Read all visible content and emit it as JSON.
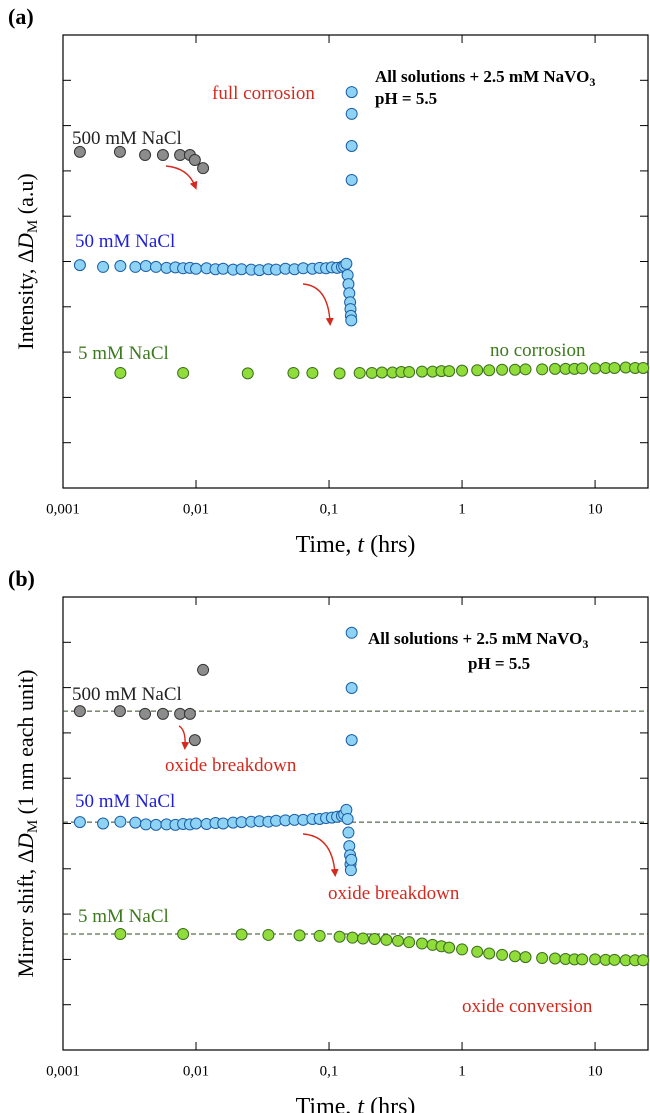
{
  "chart_data": [
    {
      "type": "scatter",
      "panel": "(a)",
      "xlabel": [
        "Time, ",
        "t",
        " (hrs)"
      ],
      "ylabel": [
        "Intensity, Δ",
        "D",
        "M",
        " (a.u)"
      ],
      "xscale": "log",
      "xlim": [
        0.001,
        25
      ],
      "xticks": [
        {
          "value": 0.001,
          "label": "0,001"
        },
        {
          "value": 0.01,
          "label": "0,01"
        },
        {
          "value": 0.1,
          "label": "0,1"
        },
        1,
        10
      ],
      "ylim": [
        0,
        10
      ],
      "yticks": [
        1,
        2,
        3,
        4,
        5,
        6,
        7,
        8,
        9
      ],
      "annotations": [
        {
          "text": "All solutions + 2.5 mM NaVO",
          "sub": "3",
          "color": "#000000",
          "bold": true
        },
        {
          "text": "pH = 5.5",
          "color": "#000000",
          "bold": true
        },
        {
          "text": "full corrosion",
          "color": "#d42a1e"
        },
        {
          "text": "500 mM NaCl",
          "color": "#222222"
        },
        {
          "text": "50 mM NaCl",
          "color": "#1f1fd6"
        },
        {
          "text": "5 mM NaCl",
          "color": "#3d7a1e"
        },
        {
          "text": "no corrosion",
          "color": "#3d7a1e"
        }
      ],
      "series": [
        {
          "name": "500 mM NaCl",
          "color": "#8c8c8c",
          "edge": "#333333",
          "x": [
            0.00134,
            0.00268,
            0.00414,
            0.00564,
            0.00759,
            0.009,
            0.0098,
            0.0113
          ],
          "values": [
            7.42,
            7.42,
            7.35,
            7.35,
            7.35,
            7.35,
            7.24,
            7.06
          ]
        },
        {
          "name": "50 mM NaCl",
          "color": "#8fd3f4",
          "edge": "#1a5ea8",
          "x": [
            0.00134,
            0.002,
            0.0027,
            0.0035,
            0.0042,
            0.005,
            0.006,
            0.007,
            0.008,
            0.009,
            0.01,
            0.012,
            0.014,
            0.016,
            0.019,
            0.022,
            0.026,
            0.03,
            0.035,
            0.04,
            0.047,
            0.055,
            0.064,
            0.075,
            0.085,
            0.095,
            0.105,
            0.115,
            0.125,
            0.13,
            0.135,
            0.138,
            0.14,
            0.142,
            0.144,
            0.145,
            0.146,
            0.147,
            0.148,
            0.148,
            0.148,
            0.148
          ],
          "values": [
            4.92,
            4.88,
            4.9,
            4.88,
            4.9,
            4.88,
            4.86,
            4.87,
            4.85,
            4.86,
            4.84,
            4.85,
            4.83,
            4.84,
            4.82,
            4.83,
            4.82,
            4.81,
            4.83,
            4.82,
            4.84,
            4.83,
            4.85,
            4.84,
            4.86,
            4.85,
            4.87,
            4.86,
            4.88,
            4.9,
            4.95,
            4.7,
            4.5,
            4.3,
            4.1,
            3.95,
            3.8,
            3.7,
            6.8,
            7.55,
            8.26,
            8.74
          ]
        },
        {
          "name": "5 mM NaCl",
          "color": "#8fdc3a",
          "edge": "#3c6e1e",
          "x": [
            0.0027,
            0.008,
            0.0245,
            0.054,
            0.075,
            0.12,
            0.17,
            0.21,
            0.25,
            0.3,
            0.35,
            0.4,
            0.5,
            0.6,
            0.7,
            0.8,
            1,
            1.3,
            1.6,
            2,
            2.5,
            3,
            4,
            5,
            6,
            7,
            8,
            10,
            12,
            14,
            17,
            20,
            23
          ],
          "values": [
            2.54,
            2.54,
            2.53,
            2.54,
            2.54,
            2.53,
            2.54,
            2.54,
            2.55,
            2.55,
            2.56,
            2.56,
            2.57,
            2.57,
            2.58,
            2.58,
            2.59,
            2.6,
            2.6,
            2.61,
            2.61,
            2.62,
            2.62,
            2.63,
            2.63,
            2.63,
            2.64,
            2.64,
            2.65,
            2.65,
            2.66,
            2.65,
            2.65
          ]
        }
      ]
    },
    {
      "type": "scatter",
      "panel": "(b)",
      "xlabel": [
        "Time, ",
        "t",
        " (hrs)"
      ],
      "ylabel": [
        "Mirror shift, Δ",
        "D",
        "M",
        " (1 nm each unit)"
      ],
      "xscale": "log",
      "xlim": [
        0.001,
        25
      ],
      "xticks": [
        {
          "value": 0.001,
          "label": "0,001"
        },
        {
          "value": 0.01,
          "label": "0,01"
        },
        {
          "value": 0.1,
          "label": "0,1"
        },
        1,
        10
      ],
      "ylim": [
        0,
        10
      ],
      "yticks": [
        1,
        2,
        3,
        4,
        5,
        6,
        7,
        8,
        9
      ],
      "hlines": [
        7.48,
        5.03,
        2.56
      ],
      "annotations": [
        {
          "text": "All solutions + 2.5 mM NaVO",
          "sub": "3",
          "color": "#000000",
          "bold": true
        },
        {
          "text": "pH = 5.5",
          "color": "#000000",
          "bold": true
        },
        {
          "text": "500 mM NaCl",
          "color": "#222222"
        },
        {
          "text": "oxide breakdown",
          "color": "#d42a1e"
        },
        {
          "text": "50 mM NaCl",
          "color": "#1f1fd6"
        },
        {
          "text": "oxide breakdown",
          "color": "#d42a1e"
        },
        {
          "text": "5 mM NaCl",
          "color": "#3d7a1e"
        },
        {
          "text": "oxide conversion",
          "color": "#d42a1e"
        }
      ],
      "series": [
        {
          "name": "500 mM NaCl",
          "color": "#8c8c8c",
          "edge": "#333333",
          "x": [
            0.00134,
            0.00268,
            0.00414,
            0.00564,
            0.00759,
            0.009,
            0.0098,
            0.0113
          ],
          "values": [
            7.48,
            7.48,
            7.42,
            7.42,
            7.42,
            7.42,
            6.84,
            8.39
          ]
        },
        {
          "name": "50 mM NaCl",
          "color": "#8fd3f4",
          "edge": "#1a5ea8",
          "x": [
            0.00134,
            0.002,
            0.0027,
            0.0035,
            0.0042,
            0.005,
            0.006,
            0.007,
            0.008,
            0.009,
            0.01,
            0.012,
            0.014,
            0.016,
            0.019,
            0.022,
            0.026,
            0.03,
            0.035,
            0.04,
            0.047,
            0.055,
            0.064,
            0.075,
            0.085,
            0.095,
            0.105,
            0.115,
            0.125,
            0.13,
            0.135,
            0.138,
            0.14,
            0.142,
            0.144,
            0.145,
            0.146,
            0.147,
            0.148,
            0.148,
            0.148
          ],
          "values": [
            5.03,
            5.0,
            5.04,
            5.02,
            4.98,
            4.97,
            4.98,
            4.97,
            4.99,
            4.98,
            5.0,
            4.99,
            5.01,
            5.0,
            5.02,
            5.03,
            5.04,
            5.05,
            5.04,
            5.06,
            5.07,
            5.08,
            5.08,
            5.1,
            5.1,
            5.12,
            5.13,
            5.15,
            5.17,
            5.2,
            5.3,
            5.1,
            4.8,
            4.5,
            4.3,
            4.1,
            3.97,
            4.2,
            6.84,
            7.99,
            9.21
          ]
        },
        {
          "name": "5 mM NaCl",
          "color": "#8fdc3a",
          "edge": "#3c6e1e",
          "x": [
            0.0027,
            0.008,
            0.022,
            0.035,
            0.06,
            0.085,
            0.12,
            0.15,
            0.18,
            0.22,
            0.27,
            0.33,
            0.4,
            0.5,
            0.6,
            0.7,
            0.8,
            1,
            1.3,
            1.6,
            2,
            2.5,
            3,
            4,
            5,
            6,
            7,
            8,
            10,
            12,
            14,
            17,
            20,
            23
          ],
          "values": [
            2.56,
            2.56,
            2.55,
            2.54,
            2.53,
            2.52,
            2.5,
            2.48,
            2.46,
            2.45,
            2.43,
            2.41,
            2.38,
            2.35,
            2.32,
            2.29,
            2.26,
            2.22,
            2.17,
            2.13,
            2.1,
            2.07,
            2.05,
            2.03,
            2.02,
            2.01,
            2.0,
            2.0,
            2.0,
            1.99,
            1.99,
            1.98,
            1.98,
            1.98
          ]
        }
      ]
    }
  ]
}
